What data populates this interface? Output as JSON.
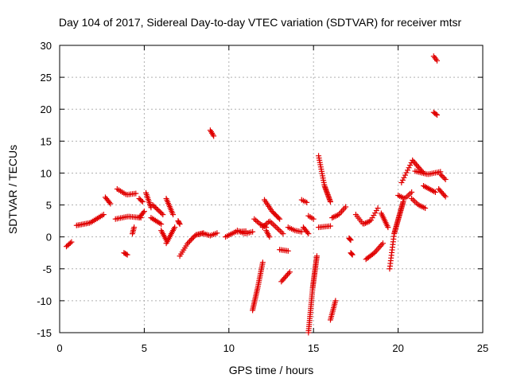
{
  "chart_data": {
    "type": "scatter",
    "title": "Day 104 of 2017, Sidereal Day-to-day VTEC variation (SDTVAR) for receiver mtsr",
    "xlabel": "GPS time / hours",
    "ylabel": "SDTVAR / TECUs",
    "xlim": [
      0,
      25
    ],
    "ylim": [
      -15,
      30
    ],
    "xticks": [
      0,
      5,
      10,
      15,
      20,
      25
    ],
    "yticks": [
      -15,
      -10,
      -5,
      0,
      5,
      10,
      15,
      20,
      25,
      30
    ],
    "grid": true,
    "marker": "+",
    "color": "#e00000",
    "segments": [
      {
        "x0": 0.4,
        "x1": 0.7,
        "y": [
          -1.5,
          -0.8
        ]
      },
      {
        "x0": 1.0,
        "x1": 2.6,
        "y": [
          1.8,
          2.2,
          3.5
        ]
      },
      {
        "x0": 2.7,
        "x1": 3.0,
        "y": [
          6.2,
          5.2
        ]
      },
      {
        "x0": 3.3,
        "x1": 4.8,
        "y": [
          2.8,
          3.2,
          3.0
        ]
      },
      {
        "x0": 3.4,
        "x1": 4.5,
        "y": [
          7.5,
          6.6,
          6.8
        ]
      },
      {
        "x0": 3.8,
        "x1": 4.0,
        "y": [
          -2.5,
          -2.8
        ]
      },
      {
        "x0": 4.3,
        "x1": 4.4,
        "y": [
          0.5,
          1.5
        ]
      },
      {
        "x0": 4.7,
        "x1": 5.0,
        "y": [
          3.0,
          4.0
        ]
      },
      {
        "x0": 4.7,
        "x1": 4.9,
        "y": [
          6.0,
          5.5
        ]
      },
      {
        "x0": 5.1,
        "x1": 5.4,
        "y": [
          6.9,
          4.6
        ]
      },
      {
        "x0": 5.4,
        "x1": 6.0,
        "y": [
          3.0,
          2.0
        ]
      },
      {
        "x0": 5.5,
        "x1": 6.1,
        "y": [
          5.0,
          3.5
        ]
      },
      {
        "x0": 6.0,
        "x1": 6.3,
        "y": [
          1.0,
          -0.5
        ]
      },
      {
        "x0": 6.3,
        "x1": 6.7,
        "y": [
          6.0,
          3.5
        ]
      },
      {
        "x0": 6.3,
        "x1": 6.8,
        "y": [
          -1.0,
          1.5
        ]
      },
      {
        "x0": 7.0,
        "x1": 7.1,
        "y": [
          2.5,
          2.0
        ]
      },
      {
        "x0": 7.1,
        "x1": 8.5,
        "y": [
          -3.0,
          -1.0,
          0.3,
          0.6
        ]
      },
      {
        "x0": 8.5,
        "x1": 9.3,
        "y": [
          0.5,
          0.2,
          0.6
        ]
      },
      {
        "x0": 8.9,
        "x1": 9.1,
        "y": [
          16.7,
          15.8
        ]
      },
      {
        "x0": 9.8,
        "x1": 11.0,
        "y": [
          0.0,
          0.8,
          0.9
        ]
      },
      {
        "x0": 10.5,
        "x1": 11.4,
        "y": [
          1.0,
          0.5,
          0.8
        ]
      },
      {
        "x0": 11.4,
        "x1": 12.0,
        "y": [
          -11.5,
          -8.0,
          -4.0
        ]
      },
      {
        "x0": 11.5,
        "x1": 12.2,
        "y": [
          2.8,
          2.0,
          1.5
        ]
      },
      {
        "x0": 12.0,
        "x1": 13.2,
        "y": [
          1.5,
          2.5,
          1.5,
          0.5
        ]
      },
      {
        "x0": 12.1,
        "x1": 13.0,
        "y": [
          5.8,
          4.0,
          2.8
        ]
      },
      {
        "x0": 12.2,
        "x1": 12.4,
        "y": [
          1.0,
          0.0
        ]
      },
      {
        "x0": 13.0,
        "x1": 13.5,
        "y": [
          -2.0,
          -2.2
        ]
      },
      {
        "x0": 13.1,
        "x1": 13.6,
        "y": [
          -7.0,
          -5.5
        ]
      },
      {
        "x0": 13.5,
        "x1": 14.3,
        "y": [
          1.5,
          1.0,
          0.8
        ]
      },
      {
        "x0": 14.3,
        "x1": 14.6,
        "y": [
          5.8,
          5.4
        ]
      },
      {
        "x0": 14.4,
        "x1": 14.7,
        "y": [
          1.5,
          0.5
        ]
      },
      {
        "x0": 14.7,
        "x1": 15.0,
        "y": [
          3.3,
          2.8
        ]
      },
      {
        "x0": 14.7,
        "x1": 15.2,
        "y": [
          -15.0,
          -8.0,
          -3.0
        ]
      },
      {
        "x0": 15.3,
        "x1": 16.0,
        "y": [
          12.7,
          8.0,
          5.5
        ]
      },
      {
        "x0": 15.3,
        "x1": 16.0,
        "y": [
          1.5,
          1.7
        ]
      },
      {
        "x0": 16.0,
        "x1": 16.3,
        "y": [
          -13.0,
          -10.0
        ]
      },
      {
        "x0": 16.1,
        "x1": 16.9,
        "y": [
          3.0,
          3.5,
          4.7
        ]
      },
      {
        "x0": 17.1,
        "x1": 17.2,
        "y": [
          -0.2,
          -0.5
        ]
      },
      {
        "x0": 17.2,
        "x1": 17.3,
        "y": [
          -2.5,
          -2.8
        ]
      },
      {
        "x0": 17.5,
        "x1": 18.8,
        "y": [
          3.5,
          2.0,
          2.5,
          4.5
        ]
      },
      {
        "x0": 18.1,
        "x1": 19.1,
        "y": [
          -3.5,
          -2.5,
          -1.0
        ]
      },
      {
        "x0": 19.0,
        "x1": 19.4,
        "y": [
          3.7,
          1.5
        ]
      },
      {
        "x0": 19.5,
        "x1": 20.3,
        "y": [
          -5.0,
          0.5,
          3.0,
          5.5
        ]
      },
      {
        "x0": 20.0,
        "x1": 20.8,
        "y": [
          6.5,
          6.0,
          7.0
        ]
      },
      {
        "x0": 20.2,
        "x1": 21.5,
        "y": [
          8.5,
          12.0,
          10.0
        ]
      },
      {
        "x0": 21.0,
        "x1": 22.5,
        "y": [
          10.3,
          9.8,
          10.2
        ]
      },
      {
        "x0": 20.8,
        "x1": 21.6,
        "y": [
          6.0,
          5.0,
          4.5
        ]
      },
      {
        "x0": 21.5,
        "x1": 22.2,
        "y": [
          8.0,
          7.0
        ]
      },
      {
        "x0": 22.1,
        "x1": 22.3,
        "y": [
          28.3,
          27.6
        ]
      },
      {
        "x0": 22.1,
        "x1": 22.3,
        "y": [
          19.5,
          19.1
        ]
      },
      {
        "x0": 22.5,
        "x1": 22.8,
        "y": [
          9.8,
          9.0
        ]
      },
      {
        "x0": 22.4,
        "x1": 22.8,
        "y": [
          7.5,
          6.3
        ]
      }
    ]
  }
}
